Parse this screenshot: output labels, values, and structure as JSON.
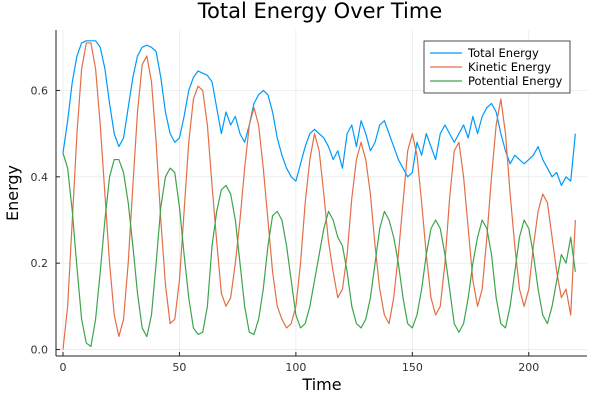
{
  "chart_data": {
    "type": "line",
    "title": "Total Energy Over Time",
    "xlabel": "Time",
    "ylabel": "Energy",
    "xlim": [
      -3,
      225
    ],
    "ylim": [
      -0.015,
      0.74
    ],
    "xticks": [
      0,
      50,
      100,
      150,
      200
    ],
    "yticks": [
      0.0,
      0.2,
      0.4,
      0.6
    ],
    "xtick_labels": [
      "0",
      "50",
      "100",
      "150",
      "200"
    ],
    "ytick_labels": [
      "0.0",
      "0.2",
      "0.4",
      "0.6"
    ],
    "grid": true,
    "legend_position": "top-right",
    "series": [
      {
        "name": "Total Energy",
        "color": "#009af9",
        "x": [
          0,
          2,
          4,
          6,
          8,
          10,
          12,
          14,
          16,
          18,
          20,
          22,
          24,
          26,
          28,
          30,
          32,
          34,
          36,
          38,
          40,
          42,
          44,
          46,
          48,
          50,
          52,
          54,
          56,
          58,
          60,
          62,
          64,
          66,
          68,
          70,
          72,
          74,
          76,
          78,
          80,
          82,
          84,
          86,
          88,
          90,
          92,
          94,
          96,
          98,
          100,
          102,
          104,
          106,
          108,
          110,
          112,
          114,
          116,
          118,
          120,
          122,
          124,
          126,
          128,
          130,
          132,
          134,
          136,
          138,
          140,
          142,
          144,
          146,
          148,
          150,
          152,
          154,
          156,
          158,
          160,
          162,
          164,
          166,
          168,
          170,
          172,
          174,
          176,
          178,
          180,
          182,
          184,
          186,
          188,
          190,
          192,
          194,
          196,
          198,
          200,
          202,
          204,
          206,
          208,
          210,
          212,
          214,
          216,
          218,
          220
        ],
        "y": [
          0.455,
          0.53,
          0.62,
          0.68,
          0.71,
          0.715,
          0.715,
          0.715,
          0.7,
          0.65,
          0.57,
          0.5,
          0.47,
          0.49,
          0.56,
          0.63,
          0.68,
          0.7,
          0.705,
          0.7,
          0.69,
          0.63,
          0.55,
          0.5,
          0.48,
          0.49,
          0.54,
          0.6,
          0.63,
          0.645,
          0.64,
          0.635,
          0.62,
          0.56,
          0.5,
          0.55,
          0.52,
          0.54,
          0.5,
          0.48,
          0.52,
          0.57,
          0.59,
          0.6,
          0.59,
          0.55,
          0.49,
          0.45,
          0.42,
          0.4,
          0.39,
          0.43,
          0.47,
          0.5,
          0.51,
          0.5,
          0.49,
          0.47,
          0.44,
          0.46,
          0.42,
          0.5,
          0.52,
          0.47,
          0.53,
          0.5,
          0.46,
          0.48,
          0.52,
          0.53,
          0.5,
          0.47,
          0.44,
          0.42,
          0.4,
          0.41,
          0.48,
          0.45,
          0.5,
          0.47,
          0.44,
          0.5,
          0.52,
          0.5,
          0.48,
          0.5,
          0.52,
          0.49,
          0.54,
          0.5,
          0.54,
          0.56,
          0.57,
          0.55,
          0.5,
          0.46,
          0.43,
          0.45,
          0.44,
          0.43,
          0.44,
          0.45,
          0.47,
          0.44,
          0.42,
          0.4,
          0.41,
          0.38,
          0.4,
          0.39,
          0.5
        ]
      },
      {
        "name": "Kinetic Energy",
        "color": "#e26f46",
        "x": [
          0,
          2,
          4,
          6,
          8,
          10,
          12,
          14,
          16,
          18,
          20,
          22,
          24,
          26,
          28,
          30,
          32,
          34,
          36,
          38,
          40,
          42,
          44,
          46,
          48,
          50,
          52,
          54,
          56,
          58,
          60,
          62,
          64,
          66,
          68,
          70,
          72,
          74,
          76,
          78,
          80,
          82,
          84,
          86,
          88,
          90,
          92,
          94,
          96,
          98,
          100,
          102,
          104,
          106,
          108,
          110,
          112,
          114,
          116,
          118,
          120,
          122,
          124,
          126,
          128,
          130,
          132,
          134,
          136,
          138,
          140,
          142,
          144,
          146,
          148,
          150,
          152,
          154,
          156,
          158,
          160,
          162,
          164,
          166,
          168,
          170,
          172,
          174,
          176,
          178,
          180,
          182,
          184,
          186,
          188,
          190,
          192,
          194,
          196,
          198,
          200,
          202,
          204,
          206,
          208,
          210,
          212,
          214,
          216,
          218,
          220
        ],
        "y": [
          0.0,
          0.1,
          0.3,
          0.5,
          0.65,
          0.71,
          0.71,
          0.65,
          0.52,
          0.36,
          0.2,
          0.08,
          0.03,
          0.07,
          0.2,
          0.38,
          0.55,
          0.66,
          0.68,
          0.62,
          0.48,
          0.3,
          0.15,
          0.06,
          0.07,
          0.16,
          0.32,
          0.48,
          0.58,
          0.61,
          0.6,
          0.52,
          0.38,
          0.25,
          0.13,
          0.1,
          0.12,
          0.2,
          0.3,
          0.42,
          0.52,
          0.56,
          0.52,
          0.42,
          0.3,
          0.18,
          0.1,
          0.07,
          0.05,
          0.06,
          0.1,
          0.2,
          0.34,
          0.44,
          0.5,
          0.46,
          0.36,
          0.25,
          0.18,
          0.12,
          0.14,
          0.22,
          0.35,
          0.44,
          0.48,
          0.44,
          0.36,
          0.24,
          0.14,
          0.08,
          0.06,
          0.12,
          0.22,
          0.34,
          0.46,
          0.5,
          0.45,
          0.34,
          0.22,
          0.12,
          0.08,
          0.1,
          0.2,
          0.35,
          0.46,
          0.48,
          0.4,
          0.28,
          0.16,
          0.1,
          0.14,
          0.26,
          0.4,
          0.52,
          0.58,
          0.5,
          0.36,
          0.24,
          0.14,
          0.1,
          0.14,
          0.24,
          0.32,
          0.36,
          0.34,
          0.26,
          0.18,
          0.12,
          0.14,
          0.08,
          0.3
        ]
      },
      {
        "name": "Potential Energy",
        "color": "#3da44d",
        "x": [
          0,
          2,
          4,
          6,
          8,
          10,
          12,
          14,
          16,
          18,
          20,
          22,
          24,
          26,
          28,
          30,
          32,
          34,
          36,
          38,
          40,
          42,
          44,
          46,
          48,
          50,
          52,
          54,
          56,
          58,
          60,
          62,
          64,
          66,
          68,
          70,
          72,
          74,
          76,
          78,
          80,
          82,
          84,
          86,
          88,
          90,
          92,
          94,
          96,
          98,
          100,
          102,
          104,
          106,
          108,
          110,
          112,
          114,
          116,
          118,
          120,
          122,
          124,
          126,
          128,
          130,
          132,
          134,
          136,
          138,
          140,
          142,
          144,
          146,
          148,
          150,
          152,
          154,
          156,
          158,
          160,
          162,
          164,
          166,
          168,
          170,
          172,
          174,
          176,
          178,
          180,
          182,
          184,
          186,
          188,
          190,
          192,
          194,
          196,
          198,
          200,
          202,
          204,
          206,
          208,
          210,
          212,
          214,
          216,
          218,
          220
        ],
        "y": [
          0.455,
          0.42,
          0.32,
          0.19,
          0.07,
          0.015,
          0.007,
          0.07,
          0.18,
          0.3,
          0.4,
          0.44,
          0.44,
          0.41,
          0.34,
          0.24,
          0.13,
          0.05,
          0.03,
          0.08,
          0.2,
          0.33,
          0.4,
          0.42,
          0.41,
          0.33,
          0.22,
          0.12,
          0.05,
          0.035,
          0.04,
          0.1,
          0.24,
          0.32,
          0.37,
          0.38,
          0.36,
          0.3,
          0.2,
          0.1,
          0.04,
          0.035,
          0.07,
          0.14,
          0.24,
          0.31,
          0.32,
          0.3,
          0.24,
          0.16,
          0.08,
          0.05,
          0.06,
          0.1,
          0.16,
          0.22,
          0.28,
          0.32,
          0.3,
          0.26,
          0.24,
          0.18,
          0.1,
          0.06,
          0.05,
          0.07,
          0.12,
          0.2,
          0.28,
          0.32,
          0.3,
          0.26,
          0.2,
          0.12,
          0.06,
          0.05,
          0.08,
          0.14,
          0.22,
          0.28,
          0.3,
          0.28,
          0.22,
          0.14,
          0.06,
          0.04,
          0.06,
          0.12,
          0.2,
          0.26,
          0.3,
          0.28,
          0.22,
          0.12,
          0.06,
          0.05,
          0.1,
          0.18,
          0.26,
          0.3,
          0.28,
          0.22,
          0.14,
          0.08,
          0.06,
          0.1,
          0.16,
          0.22,
          0.2,
          0.26,
          0.18
        ]
      }
    ]
  }
}
